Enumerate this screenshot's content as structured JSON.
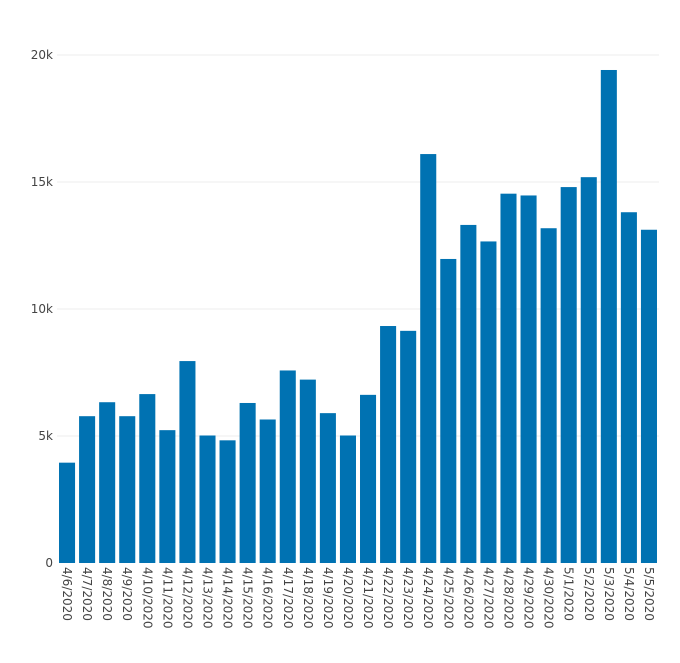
{
  "chart_data": {
    "type": "bar",
    "title": "",
    "xlabel": "",
    "ylabel": "",
    "ylim": [
      0,
      20000
    ],
    "grid": true,
    "bar_color": "#0072b2",
    "grid_color": "#eeeeee",
    "y_ticks": [
      {
        "value": 0,
        "label": "0"
      },
      {
        "value": 5000,
        "label": "5k"
      },
      {
        "value": 10000,
        "label": "10k"
      },
      {
        "value": 15000,
        "label": "15k"
      },
      {
        "value": 20000,
        "label": "20k"
      }
    ],
    "categories": [
      "4/6/2020",
      "4/7/2020",
      "4/8/2020",
      "4/9/2020",
      "4/10/2020",
      "4/11/2020",
      "4/12/2020",
      "4/13/2020",
      "4/14/2020",
      "4/15/2020",
      "4/16/2020",
      "4/17/2020",
      "4/18/2020",
      "4/19/2020",
      "4/20/2020",
      "4/21/2020",
      "4/22/2020",
      "4/23/2020",
      "4/24/2020",
      "4/25/2020",
      "4/26/2020",
      "4/27/2020",
      "4/28/2020",
      "4/29/2020",
      "4/30/2020",
      "5/1/2020",
      "5/2/2020",
      "5/3/2020",
      "5/4/2020",
      "5/5/2020"
    ],
    "values": [
      3950,
      5780,
      6330,
      5780,
      6650,
      5230,
      7950,
      5020,
      4830,
      6300,
      5650,
      7580,
      7220,
      5900,
      5020,
      6620,
      9330,
      9140,
      16100,
      11970,
      13310,
      12660,
      14540,
      14470,
      13180,
      14800,
      15190,
      19410,
      13810,
      13120
    ]
  }
}
